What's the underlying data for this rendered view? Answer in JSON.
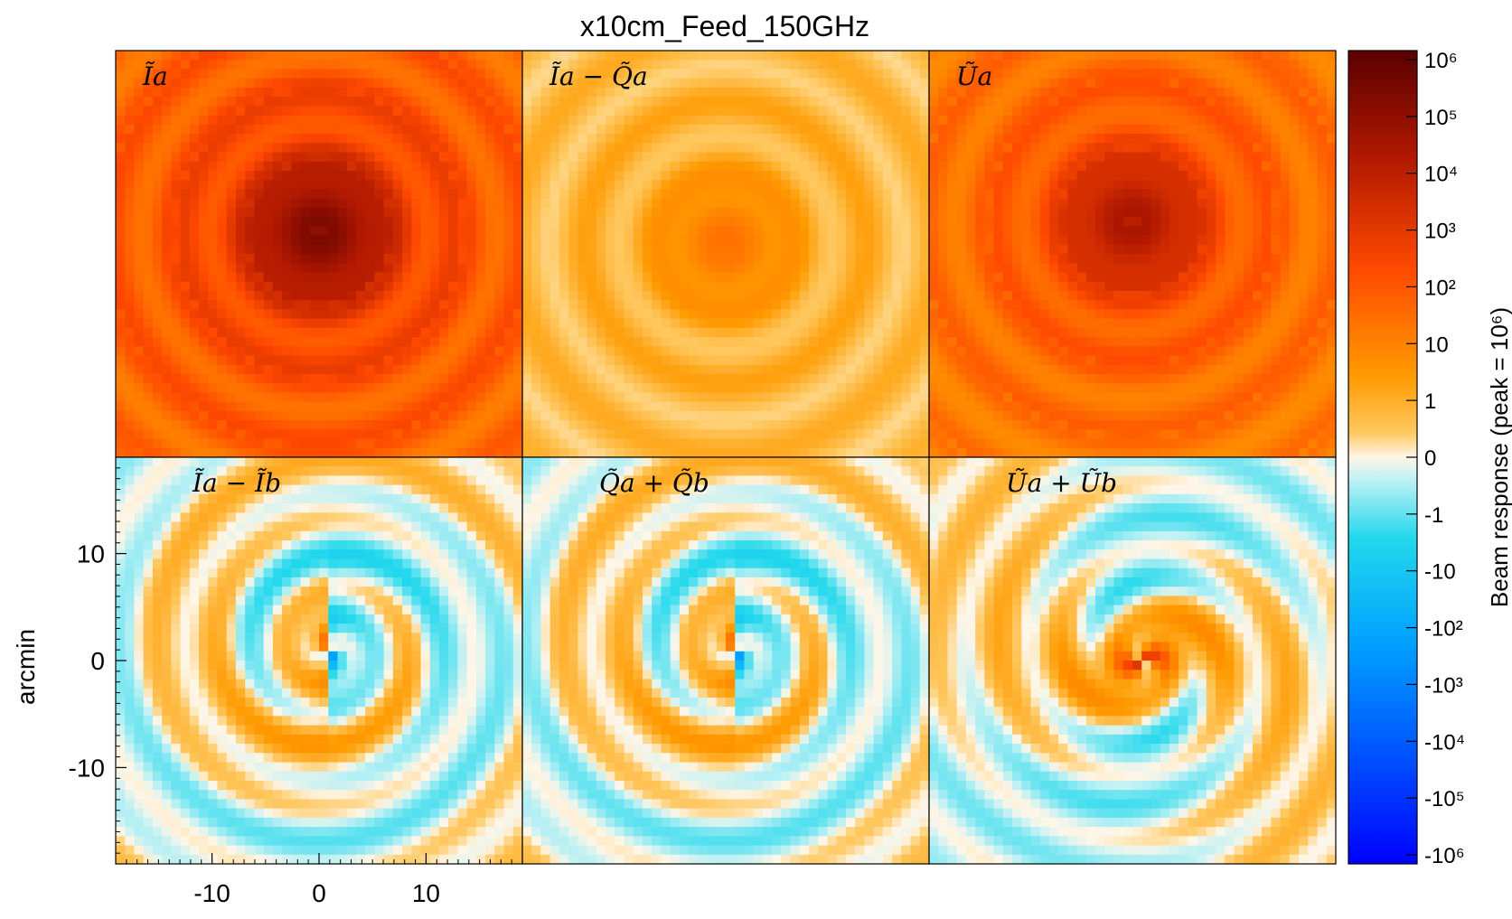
{
  "chart_data": {
    "type": "heatmap",
    "title": "x10cm_Feed_150GHz",
    "ylabel": "arcmin",
    "xlabel": "",
    "xlim": [
      -19,
      19
    ],
    "ylim": [
      -19,
      19
    ],
    "x_ticks": [
      "-10",
      "0",
      "10"
    ],
    "y_ticks": [
      "10",
      "0",
      "-10"
    ],
    "x_tick_values": [
      -10,
      0,
      10
    ],
    "y_tick_values": [
      10,
      0,
      -10
    ],
    "panels": [
      {
        "label": "Ĩa",
        "row": 0,
        "col": 0,
        "peak": 1.0,
        "kind": "intensity",
        "cx": 0,
        "cy": 2
      },
      {
        "label": "Ĩa − Q̃a",
        "row": 0,
        "col": 1,
        "peak": 0.55,
        "kind": "difference",
        "cx": 0,
        "cy": 1
      },
      {
        "label": "Ũa",
        "row": 0,
        "col": 2,
        "peak": 0.85,
        "kind": "intensity",
        "cx": 0,
        "cy": 3
      },
      {
        "label": "Ĩa − Ĩb",
        "row": 1,
        "col": 0,
        "peak": 0.35,
        "kind": "residual",
        "cx": 1,
        "cy": 1
      },
      {
        "label": "Q̃a + Q̃b",
        "row": 1,
        "col": 1,
        "peak": 0.35,
        "kind": "residual",
        "cx": 1,
        "cy": 1
      },
      {
        "label": "Ũa + Ũb",
        "row": 1,
        "col": 2,
        "peak": 0.35,
        "kind": "rotated",
        "cx": 1,
        "cy": 0
      }
    ],
    "colorbar": {
      "label": "Beam response (peak = 10⁶)",
      "ticks": [
        "10⁶",
        "10⁵",
        "10⁴",
        "10³",
        "10²",
        "10",
        "1",
        "0",
        "-1",
        "-10",
        "-10²",
        "-10³",
        "-10⁴",
        "-10⁵",
        "-10⁶"
      ],
      "colors": {
        "pos_max": "#5a0000",
        "pos_high": "#c02800",
        "pos_mid": "#ff5a00",
        "pos_low": "#ffa500",
        "zero": "#fff6e8",
        "neg_low": "#22d8e8",
        "neg_mid": "#0070ff",
        "neg_max": "#0000ff"
      }
    }
  }
}
